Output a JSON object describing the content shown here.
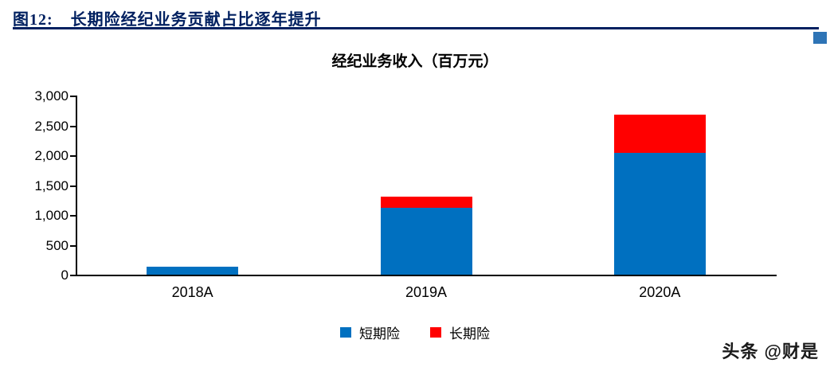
{
  "header": {
    "label": "图12:",
    "title": "长期险经纪业务贡献占比逐年提升"
  },
  "chart_title": "经纪业务收入（百万元）",
  "watermark": "头条 @财是",
  "colors": {
    "header_accent": "#002060",
    "corner_square": "#2E74B6",
    "short_term_blue": "#0070C0",
    "long_term_red": "#FF0000"
  },
  "chart_data": {
    "type": "bar",
    "stacked": true,
    "title": "经纪业务收入（百万元）",
    "categories": [
      "2018A",
      "2019A",
      "2020A"
    ],
    "series": [
      {
        "name": "短期险",
        "color": "#0070C0",
        "values": [
          130,
          1115,
          2035
        ]
      },
      {
        "name": "长期险",
        "color": "#FF0000",
        "values": [
          0,
          190,
          650
        ]
      }
    ],
    "xlabel": "",
    "ylabel": "",
    "ylim": [
      0,
      3000
    ],
    "yticks": [
      0,
      500,
      1000,
      1500,
      2000,
      2500,
      3000
    ],
    "grid": false,
    "legend_position": "bottom"
  }
}
